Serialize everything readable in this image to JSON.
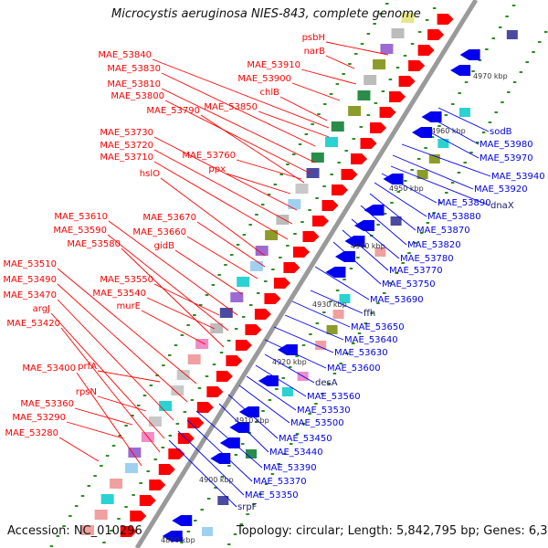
{
  "title": "Microcystis aeruginosa NIES-843, complete genome",
  "accession": "Accession: NC_010296",
  "summary": "Topology: circular; Length: 5,842,795 bp; Genes: 6,360",
  "colors": {
    "forward": "#ff0000",
    "reverse": "#0000ee",
    "backbone": "#9a9a9a",
    "tick": "#2e8b22"
  },
  "kbp_ticks": [
    {
      "text": "4970 kbp"
    },
    {
      "text": "4960 kbp"
    },
    {
      "text": "4950 kbp"
    },
    {
      "text": "4940 kbp"
    },
    {
      "text": "4930 kbp"
    },
    {
      "text": "4920 kbp"
    },
    {
      "text": "4910 kbp"
    },
    {
      "text": "4900 kbp"
    },
    {
      "text": "4890 kbp"
    }
  ],
  "forward_labels": [
    "psbH",
    "narB",
    "MAE_53840",
    "MAE_53830",
    "MAE_53910",
    "MAE_53810",
    "MAE_53900",
    "MAE_53800",
    "chlB",
    "MAE_53850",
    "MAE_53790",
    "MAE_53730",
    "MAE_53720",
    "MAE_53760",
    "MAE_53710",
    "ppx",
    "hslO",
    "MAE_53610",
    "MAE_53670",
    "MAE_53590",
    "MAE_53660",
    "MAE_53580",
    "gidB",
    "MAE_53510",
    "MAE_53550",
    "MAE_53490",
    "MAE_53540",
    "MAE_53470",
    "murE",
    "argJ",
    "MAE_53420",
    "MAE_53400",
    "prfA",
    "rpsN",
    "MAE_53360",
    "MAE_53290",
    "MAE_53280"
  ],
  "reverse_labels": [
    "sodB",
    "MAE_53980",
    "MAE_53970",
    "MAE_53940",
    "MAE_53920",
    "dnaX",
    "MAE_53890",
    "MAE_53880",
    "MAE_53870",
    "MAE_53820",
    "MAE_53780",
    "MAE_53770",
    "MAE_53750",
    "MAE_53690",
    "ffh",
    "MAE_53650",
    "MAE_53640",
    "MAE_53630",
    "MAE_53600",
    "desA",
    "MAE_53560",
    "MAE_53530",
    "MAE_53500",
    "MAE_53450",
    "MAE_53440",
    "MAE_53390",
    "MAE_53370",
    "MAE_53350",
    "srpF"
  ]
}
